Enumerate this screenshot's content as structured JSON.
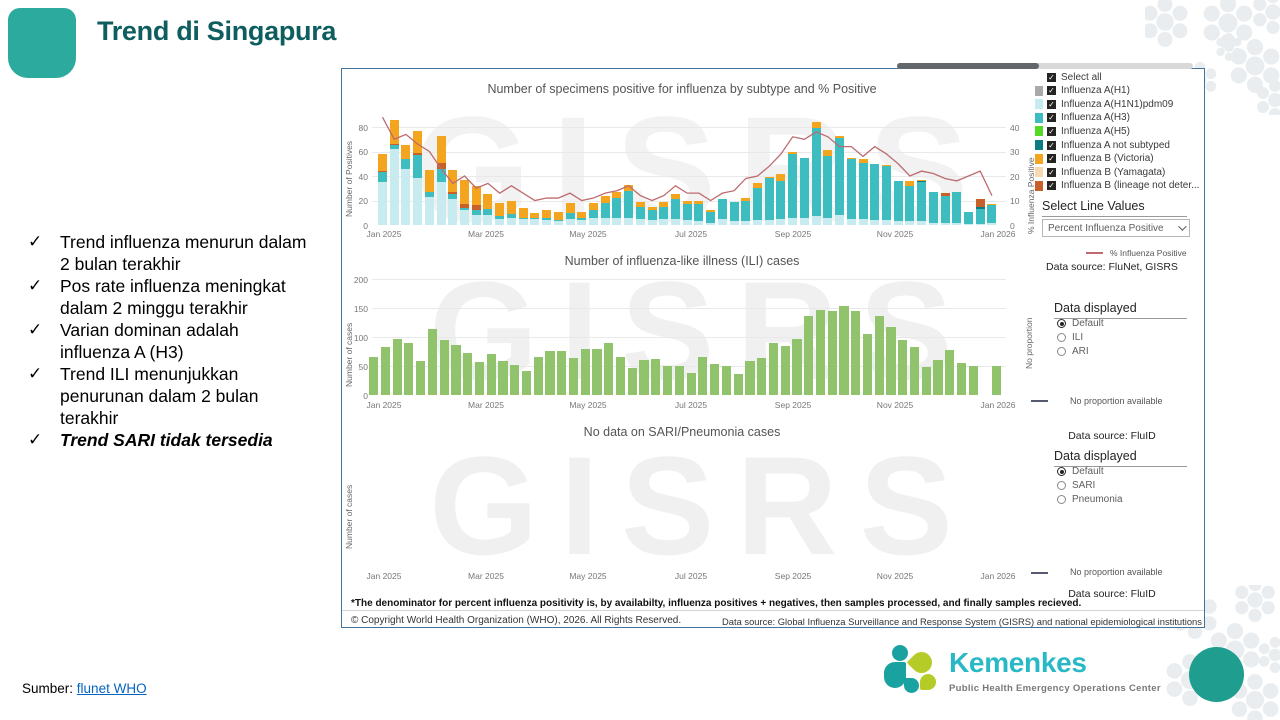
{
  "slide": {
    "title": "Trend di Singapura",
    "check_glyph": "✓",
    "bullets": [
      {
        "text": "Trend influenza menurun dalam 2 bulan terakhir",
        "emphasis": false
      },
      {
        "text": "Pos rate influenza meningkat dalam 2 minggu terakhir",
        "emphasis": false
      },
      {
        "text": "Varian dominan adalah influenza A (H3)",
        "emphasis": false
      },
      {
        "text": "Trend ILI menunjukkan penurunan dalam 2 bulan terakhir",
        "emphasis": false
      },
      {
        "text": "Trend SARI tidak tersedia",
        "emphasis": true
      }
    ],
    "source_label": "Sumber:",
    "source_link": "flunet WHO"
  },
  "dashboard": {
    "watermark": "GISRS",
    "legend": {
      "select_all": "Select all",
      "items": [
        {
          "label": "Influenza A(H1)",
          "color": "#a9a9a9"
        },
        {
          "label": "Influenza A(H1N1)pdm09",
          "color": "#c7ebee"
        },
        {
          "label": "Influenza A(H3)",
          "color": "#3dbdc0"
        },
        {
          "label": "Influenza A(H5)",
          "color": "#56d926"
        },
        {
          "label": "Influenza A not subtyped",
          "color": "#0c7c84"
        },
        {
          "label": "Influenza B (Victoria)",
          "color": "#f3a51f"
        },
        {
          "label": "Influenza B (Yamagata)",
          "color": "#f7d9b4"
        },
        {
          "label": "Influenza B (lineage not deter...",
          "color": "#c8602a"
        }
      ]
    },
    "select_line_values": {
      "label": "Select Line Values",
      "value": "Percent Influenza Positive"
    },
    "line_legend": "% Influenza Positive",
    "datasource1": "Data source: FluNet, GISRS",
    "panel2": {
      "header": "Data displayed",
      "options": [
        "Default",
        "ILI",
        "ARI"
      ],
      "selected": "Default",
      "side_label": "No proportion",
      "no_proportion": "No proportion available",
      "datasource": "Data source: FluID"
    },
    "panel3": {
      "header": "Data displayed",
      "options": [
        "Default",
        "SARI",
        "Pneumonia"
      ],
      "selected": "Default",
      "no_proportion": "No proportion available",
      "datasource": "Data source: FluID"
    },
    "footnote": "*The denominator for percent influenza positivity is, by availabilty, influenza positives + negatives, then samples processed, and finally samples recieved.",
    "copyright": "© Copyright World Health Organization (WHO), 2026. All Rights Reserved.",
    "datasource_footer": "Data source: Global Influenza Surveillance and Response System (GISRS) and national epidemiological institutions"
  },
  "footer_logo": {
    "brand": "Kemenkes",
    "subtitle": "Public Health Emergency Operations Center"
  },
  "colors": {
    "accent_teal": "#2baa9d",
    "title_teal": "#0e5e60",
    "line_rose": "#bd6b70",
    "ili_green": "#90c36c",
    "border_blue": "#44749c",
    "kemenkes_cyan": "#29b9c6",
    "kemenkes_lime": "#b5cc28",
    "kemenkes_teal": "#1aa2a0",
    "circle_teal": "#1f9d8f"
  },
  "chart_data": [
    {
      "type": "bar+line",
      "title": "Number of specimens positive for influenza by subtype and % Positive",
      "ylabel": "Number of Positives",
      "y2label": "% Influenza Positive",
      "ylim": [
        0,
        80
      ],
      "y2lim": [
        0,
        40
      ],
      "yticks": [
        0,
        20,
        40,
        60,
        80
      ],
      "y2ticks": [
        0,
        10,
        20,
        30,
        40
      ],
      "xticklabels": [
        "Jan 2025",
        "Mar 2025",
        "May 2025",
        "Jul 2025",
        "Sep 2025",
        "Nov 2025",
        "Jan 2026"
      ],
      "stack_series": [
        "Influenza A(H1N1)pdm09",
        "Influenza A(H3)",
        "Influenza A not subtyped",
        "Influenza B (lineage not determined)",
        "Influenza B (Victoria)"
      ],
      "stack_colors": [
        "#c7ebee",
        "#3dbdc0",
        "#0c7c84",
        "#c8602a",
        "#f3a51f"
      ],
      "stacks": [
        [
          35,
          8,
          0,
          1,
          14
        ],
        [
          62,
          3,
          0,
          1,
          20
        ],
        [
          46,
          8,
          0,
          0,
          11
        ],
        [
          38,
          19,
          0,
          2,
          18
        ],
        [
          23,
          4,
          0,
          0,
          18
        ],
        [
          35,
          11,
          0,
          5,
          22
        ],
        [
          21,
          4,
          0,
          2,
          18
        ],
        [
          12,
          2,
          0,
          3,
          20
        ],
        [
          8,
          4,
          0,
          4,
          16
        ],
        [
          8,
          5,
          0,
          0,
          12
        ],
        [
          5,
          2,
          0,
          0,
          11
        ],
        [
          6,
          3,
          0,
          0,
          11
        ],
        [
          5,
          1,
          0,
          0,
          8
        ],
        [
          5,
          1,
          0,
          0,
          4
        ],
        [
          4,
          2,
          0,
          0,
          6
        ],
        [
          3,
          1,
          0,
          0,
          7
        ],
        [
          5,
          5,
          0,
          0,
          8
        ],
        [
          4,
          2,
          0,
          0,
          5
        ],
        [
          6,
          6,
          0,
          0,
          6
        ],
        [
          6,
          12,
          0,
          0,
          6
        ],
        [
          6,
          16,
          0,
          0,
          5
        ],
        [
          6,
          22,
          0,
          0,
          5
        ],
        [
          5,
          10,
          0,
          0,
          4
        ],
        [
          4,
          8,
          0,
          0,
          3
        ],
        [
          5,
          10,
          0,
          0,
          4
        ],
        [
          5,
          16,
          0,
          0,
          4
        ],
        [
          4,
          13,
          0,
          0,
          3
        ],
        [
          3,
          14,
          0,
          0,
          3
        ],
        [
          2,
          9,
          0,
          0,
          1
        ],
        [
          5,
          16,
          0,
          0,
          0
        ],
        [
          3,
          16,
          0,
          0,
          0
        ],
        [
          3,
          17,
          0,
          0,
          2
        ],
        [
          4,
          26,
          0,
          0,
          4
        ],
        [
          4,
          34,
          0,
          0,
          1
        ],
        [
          5,
          31,
          0,
          0,
          6
        ],
        [
          6,
          52,
          0,
          0,
          2
        ],
        [
          6,
          49,
          0,
          0,
          0
        ],
        [
          7,
          72,
          0,
          0,
          5
        ],
        [
          6,
          50,
          0,
          0,
          5
        ],
        [
          8,
          63,
          0,
          0,
          2
        ],
        [
          5,
          49,
          0,
          0,
          1
        ],
        [
          5,
          46,
          0,
          0,
          3
        ],
        [
          4,
          46,
          0,
          0,
          0
        ],
        [
          4,
          44,
          0,
          0,
          1
        ],
        [
          3,
          33,
          0,
          0,
          0
        ],
        [
          3,
          29,
          0,
          0,
          4
        ],
        [
          3,
          32,
          1,
          0,
          1
        ],
        [
          2,
          25,
          0,
          0,
          0
        ],
        [
          2,
          22,
          0,
          2,
          0
        ],
        [
          2,
          25,
          0,
          0,
          0
        ],
        [
          1,
          10,
          0,
          0,
          0
        ],
        [
          1,
          12,
          2,
          6,
          0
        ],
        [
          2,
          14,
          0,
          0,
          1
        ]
      ],
      "line": {
        "name": "% Influenza Positive",
        "color": "#bd6b70",
        "values": [
          44,
          35,
          37,
          33,
          30,
          23,
          17,
          20,
          15,
          17,
          13,
          16,
          13,
          10,
          11,
          11,
          13,
          10,
          11,
          13,
          14,
          16,
          12,
          10,
          12,
          16,
          13,
          13,
          10,
          13,
          14,
          19,
          20,
          24,
          29,
          36,
          35,
          38,
          36,
          32,
          32,
          28,
          32,
          29,
          25,
          20,
          22,
          21,
          19,
          18,
          20,
          22,
          12
        ]
      }
    },
    {
      "type": "bar",
      "title": "Number of influenza-like illness (ILI) cases",
      "ylabel": "Number of cases",
      "ylim": [
        0,
        200
      ],
      "yticks": [
        0,
        50,
        100,
        150,
        200
      ],
      "xticklabels": [
        "Jan 2025",
        "Mar 2025",
        "May 2025",
        "Jul 2025",
        "Sep 2025",
        "Nov 2025",
        "Jan 2026"
      ],
      "bar_color": "#90c36c",
      "values": [
        65,
        82,
        97,
        89,
        58,
        113,
        95,
        86,
        73,
        57,
        70,
        58,
        52,
        41,
        66,
        76,
        76,
        63,
        80,
        79,
        89,
        66,
        47,
        60,
        62,
        50,
        50,
        38,
        66,
        53,
        50,
        36,
        59,
        64,
        90,
        85,
        97,
        136,
        146,
        145,
        153,
        145,
        106,
        136,
        117,
        94,
        83,
        49,
        60,
        77,
        56,
        50,
        null,
        50
      ]
    },
    {
      "type": "none",
      "title": "No data on SARI/Pneumonia cases",
      "ylabel": "Number of cases",
      "xticklabels": [
        "Jan 2025",
        "Mar 2025",
        "May 2025",
        "Jul 2025",
        "Sep 2025",
        "Nov 2025",
        "Jan 2026"
      ]
    }
  ]
}
